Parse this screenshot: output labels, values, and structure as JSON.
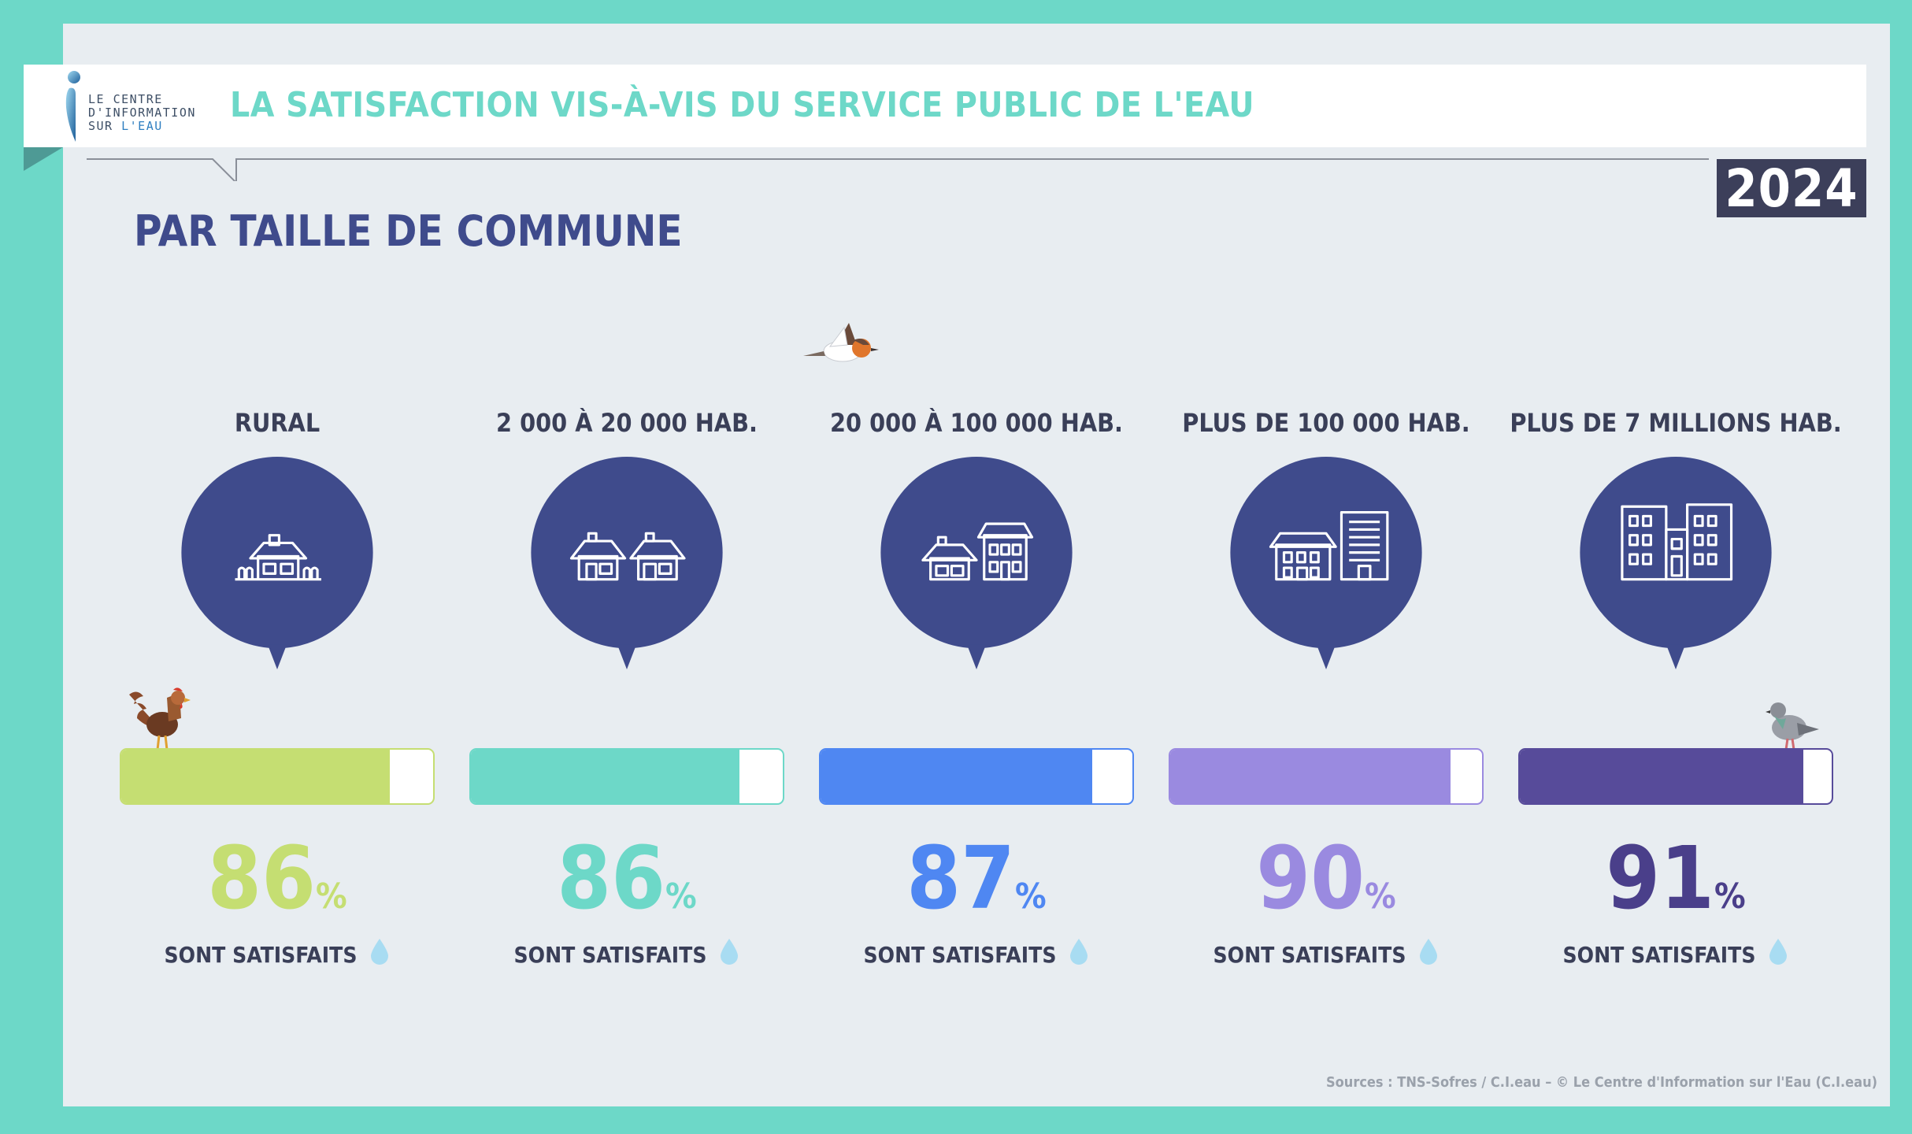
{
  "header": {
    "logo_lines": [
      "LE CENTRE",
      "D'INFORMATION",
      "SUR"
    ],
    "logo_highlight": "L'EAU",
    "title": "LA SATISFACTION VIS-À-VIS DU SERVICE PUBLIC DE L'EAU",
    "year": "2024"
  },
  "subtitle": "PAR TAILLE DE COMMUNE",
  "chart_data": {
    "type": "bar",
    "title": "LA SATISFACTION VIS-À-VIS DU SERVICE PUBLIC DE L'EAU",
    "subtitle": "PAR TAILLE DE COMMUNE",
    "categories": [
      "RURAL",
      "2 000 À 20 000 HAB.",
      "20 000 À 100 000 HAB.",
      "PLUS DE 100 000 HAB.",
      "PLUS DE 7 MILLIONS HAB."
    ],
    "values": [
      86,
      86,
      87,
      90,
      91
    ],
    "unit": "%",
    "value_caption": "SONT SATISFAITS",
    "ylim": [
      0,
      100
    ],
    "colors": [
      "#c5de72",
      "#6dd8c8",
      "#4f87f2",
      "#9a8ae0",
      "#574b9a"
    ],
    "number_colors": [
      "#c5de72",
      "#6dd8c8",
      "#4f87f2",
      "#9a8ae0",
      "#4a3f8a"
    ],
    "icons": [
      "rural-house-icon",
      "two-houses-icon",
      "house-and-building-icon",
      "apartment-buildings-icon",
      "city-towers-icon"
    ]
  },
  "source": "Sources : TNS-Sofres / C.I.eau – © Le Centre d'Information sur l'Eau (C.I.eau)"
}
